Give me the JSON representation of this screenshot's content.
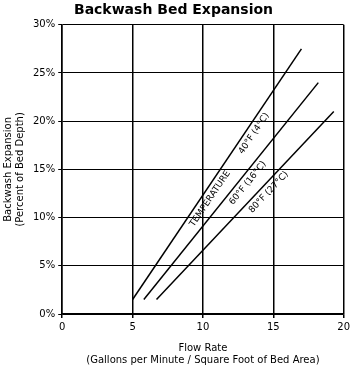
{
  "chart_data": {
    "type": "line",
    "title": "Backwash Bed Expansion",
    "x_label": "Flow Rate",
    "x_label_note": "(Gallons per Minute / Square Foot of Bed Area)",
    "y_label": "Backwash Expansion",
    "y_label_note": "(Percent of Bed Depth)",
    "annotations": [
      "TEMPERATURE"
    ],
    "series": [
      {
        "name": "40°F (4°C)",
        "color": "#000000",
        "x": [
          5,
          17
        ],
        "values": [
          1.5,
          27.5
        ]
      },
      {
        "name": "60°F (16°C)",
        "color": "#000000",
        "x": [
          5.8,
          18.2
        ],
        "values": [
          1.5,
          24
        ]
      },
      {
        "name": "80°F (27°C)",
        "color": "#000000",
        "x": [
          6.7,
          19.3
        ],
        "values": [
          1.5,
          21
        ]
      }
    ],
    "xlim": [
      0,
      20
    ],
    "xticks": [
      0,
      5,
      10,
      15,
      20
    ],
    "ylim": [
      0,
      30
    ],
    "yticks": [
      {
        "value": 0,
        "label": "0%"
      },
      {
        "value": 5,
        "label": "5%"
      },
      {
        "value": 10,
        "label": "10%"
      },
      {
        "value": 15,
        "label": "15%"
      },
      {
        "value": 20,
        "label": "20%"
      },
      {
        "value": 25,
        "label": "25%"
      },
      {
        "value": 30,
        "label": "30%"
      }
    ],
    "grid": true,
    "marker": "none",
    "line_style": "solid"
  }
}
